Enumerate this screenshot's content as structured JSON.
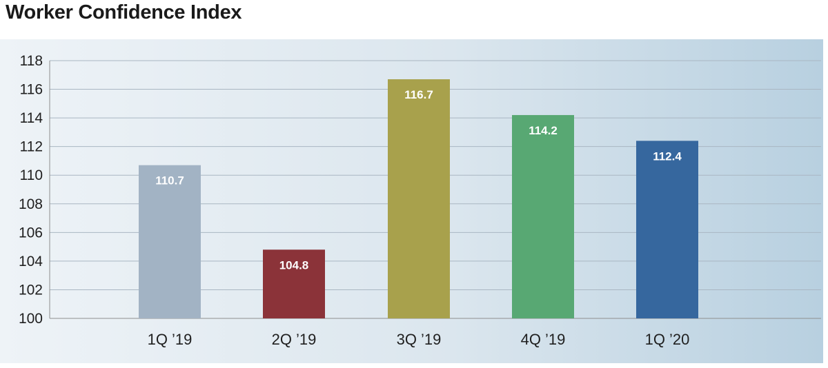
{
  "chart_data": {
    "type": "bar",
    "title": "Worker Confidence Index",
    "xlabel": "",
    "ylabel": "",
    "categories": [
      "1Q ’19",
      "2Q ’19",
      "3Q ’19",
      "4Q ’19",
      "1Q ’20"
    ],
    "values": [
      110.7,
      104.8,
      116.7,
      114.2,
      112.4
    ],
    "value_labels": [
      "110.7",
      "104.8",
      "116.7",
      "114.2",
      "112.4"
    ],
    "bar_colors": [
      "#a2b3c4",
      "#8b3339",
      "#a8a14c",
      "#58a873",
      "#36679e"
    ],
    "ylim": [
      100,
      118
    ],
    "yticks": [
      100,
      102,
      104,
      106,
      108,
      110,
      112,
      114,
      116,
      118
    ],
    "grid": true,
    "legend": "none",
    "background_gradient": [
      "#eef3f7",
      "#b8d0e0"
    ]
  }
}
